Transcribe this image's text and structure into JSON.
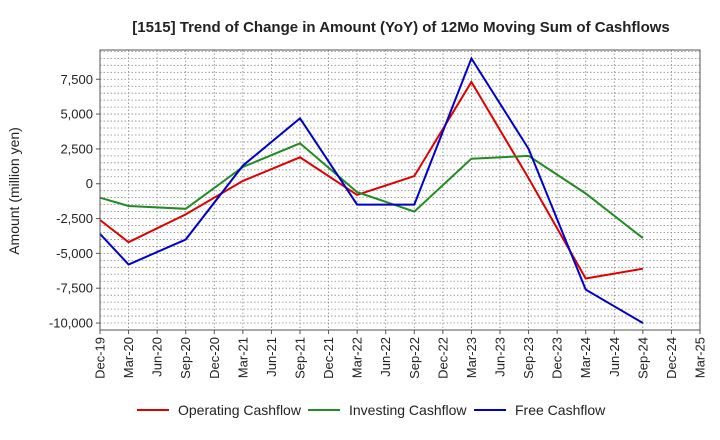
{
  "chart_data": {
    "type": "line",
    "title": "[1515]  Trend of Change in Amount (YoY) of 12Mo Moving Sum of Cashflows",
    "xlabel": "",
    "ylabel": "Amount (million yen)",
    "ylim": [
      -10500,
      9600
    ],
    "yticks": [
      7500,
      5000,
      2500,
      0,
      -2500,
      -5000,
      -7500,
      -10000
    ],
    "ytick_labels": [
      "7,500",
      "5,000",
      "2,500",
      "0",
      "-2,500",
      "-5,000",
      "-7,500",
      "-10,000"
    ],
    "categories": [
      "Dec-19",
      "Mar-20",
      "Jun-20",
      "Sep-20",
      "Dec-20",
      "Mar-21",
      "Jun-21",
      "Sep-21",
      "Dec-21",
      "Mar-22",
      "Jun-22",
      "Sep-22",
      "Dec-22",
      "Mar-23",
      "Jun-23",
      "Sep-23",
      "Dec-23",
      "Mar-24",
      "Jun-24",
      "Sep-24",
      "Dec-24",
      "Mar-25"
    ],
    "grid": true,
    "legend_position": "bottom",
    "series": [
      {
        "name": "Operating Cashflow",
        "color": "#e00000",
        "points": [
          {
            "x": 0,
            "y": -2600
          },
          {
            "x": 1,
            "y": -4200
          },
          {
            "x": 3,
            "y": -2200
          },
          {
            "x": 5,
            "y": 200
          },
          {
            "x": 7,
            "y": 1900
          },
          {
            "x": 9,
            "y": -800
          },
          {
            "x": 11,
            "y": 550
          },
          {
            "x": 13,
            "y": 7300
          },
          {
            "x": 15,
            "y": 400
          },
          {
            "x": 17,
            "y": -6800
          },
          {
            "x": 19,
            "y": -6100
          }
        ]
      },
      {
        "name": "Investing Cashflow",
        "color": "#228b22",
        "points": [
          {
            "x": 0,
            "y": -1000
          },
          {
            "x": 1,
            "y": -1600
          },
          {
            "x": 3,
            "y": -1800
          },
          {
            "x": 5,
            "y": 1200
          },
          {
            "x": 7,
            "y": 2900
          },
          {
            "x": 9,
            "y": -600
          },
          {
            "x": 11,
            "y": -2000
          },
          {
            "x": 13,
            "y": 1800
          },
          {
            "x": 15,
            "y": 2000
          },
          {
            "x": 17,
            "y": -700
          },
          {
            "x": 19,
            "y": -3900
          }
        ]
      },
      {
        "name": "Free Cashflow",
        "color": "#0000cc",
        "points": [
          {
            "x": 0,
            "y": -3600
          },
          {
            "x": 1,
            "y": -5800
          },
          {
            "x": 3,
            "y": -4000
          },
          {
            "x": 5,
            "y": 1300
          },
          {
            "x": 7,
            "y": 4700
          },
          {
            "x": 9,
            "y": -1500
          },
          {
            "x": 11,
            "y": -1500
          },
          {
            "x": 13,
            "y": 9000
          },
          {
            "x": 15,
            "y": 2500
          },
          {
            "x": 17,
            "y": -7600
          },
          {
            "x": 19,
            "y": -10000
          }
        ]
      }
    ]
  }
}
